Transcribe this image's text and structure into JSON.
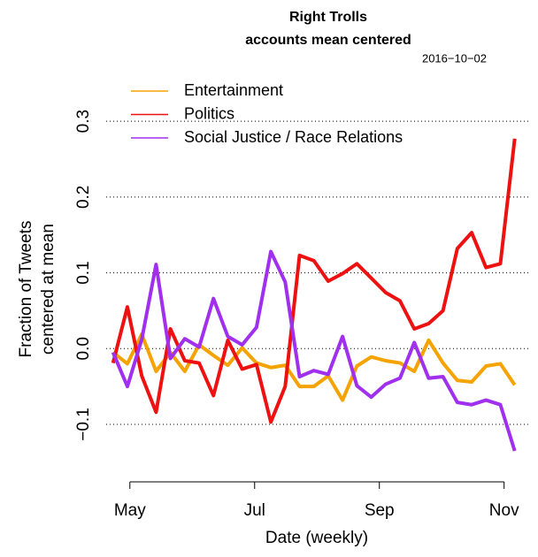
{
  "chart_data": {
    "type": "line",
    "title": "Right Trolls",
    "subtitle": "accounts mean centered",
    "annotation": "2016−10−02",
    "x_label": "Date (weekly)",
    "y_label": [
      "Fraction of Tweets",
      "centered at mean"
    ],
    "x": [
      4.73,
      4.96,
      5.19,
      5.42,
      5.65,
      5.88,
      6.11,
      6.34,
      6.57,
      6.8,
      7.03,
      7.26,
      7.49,
      7.72,
      7.95,
      8.18,
      8.41,
      8.64,
      8.87,
      9.1,
      9.33,
      9.56,
      9.79,
      10.02,
      10.25,
      10.48,
      10.71,
      10.94,
      11.17
    ],
    "xlim": [
      4.62,
      11.43
    ],
    "xticks": [
      {
        "value": 5,
        "label": "May"
      },
      {
        "value": 7,
        "label": "Jul"
      },
      {
        "value": 9,
        "label": "Sep"
      },
      {
        "value": 11,
        "label": "Nov"
      }
    ],
    "ylim": [
      -0.17,
      0.32
    ],
    "yticks": [
      {
        "value": -0.1,
        "label": "−0.1"
      },
      {
        "value": 0,
        "label": "0.0"
      },
      0.1,
      0.2,
      0.3
    ],
    "grid": true,
    "legend": "top-left",
    "series": [
      {
        "name": "Entertainment",
        "color": "#f5a300",
        "values": [
          -0.005,
          -0.02,
          0.019,
          -0.03,
          -0.005,
          -0.03,
          0.005,
          -0.009,
          -0.022,
          0.001,
          -0.019,
          -0.025,
          -0.022,
          -0.05,
          -0.05,
          -0.036,
          -0.068,
          -0.023,
          -0.011,
          -0.016,
          -0.019,
          -0.03,
          0.011,
          -0.019,
          -0.042,
          -0.044,
          -0.023,
          -0.02,
          -0.048
        ]
      },
      {
        "name": "Politics",
        "color": "#ee1111",
        "values": [
          -0.019,
          0.055,
          -0.036,
          -0.084,
          0.026,
          -0.016,
          -0.019,
          -0.062,
          0.011,
          -0.027,
          -0.021,
          -0.097,
          -0.05,
          0.123,
          0.116,
          0.089,
          0.099,
          0.112,
          0.093,
          0.074,
          0.063,
          0.026,
          0.033,
          0.05,
          0.132,
          0.153,
          0.107,
          0.112,
          0.277
        ]
      },
      {
        "name": "Social Justice / Race Relations",
        "color": "#a030ee",
        "values": [
          -0.005,
          -0.05,
          0.012,
          0.111,
          -0.013,
          0.013,
          0.002,
          0.066,
          0.016,
          0.005,
          0.028,
          0.128,
          0.088,
          -0.037,
          -0.029,
          -0.034,
          0.016,
          -0.049,
          -0.064,
          -0.047,
          -0.039,
          0.008,
          -0.039,
          -0.037,
          -0.071,
          -0.074,
          -0.068,
          -0.074,
          -0.135
        ]
      }
    ]
  }
}
